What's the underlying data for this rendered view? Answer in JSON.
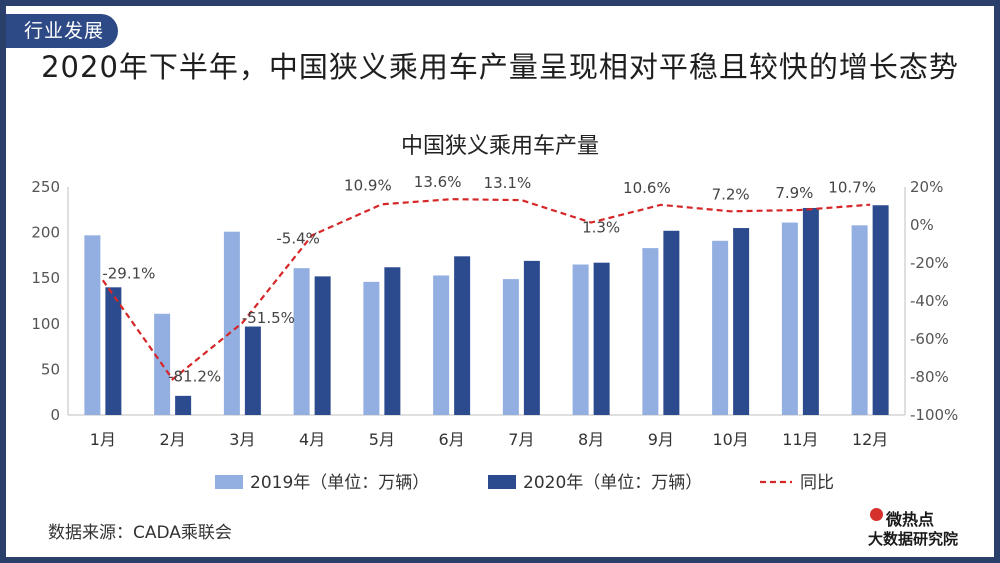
{
  "header": {
    "tag": "行业发展",
    "headline": "2020年下半年，中国狭义乘用车产量呈现相对平稳且较快的增长态势"
  },
  "chart_data": {
    "type": "bar",
    "title": "中国狭义乘用车产量",
    "categories": [
      "1月",
      "2月",
      "3月",
      "4月",
      "5月",
      "6月",
      "7月",
      "8月",
      "9月",
      "10月",
      "11月",
      "12月"
    ],
    "series": [
      {
        "name": "2019年（单位：万辆）",
        "type": "bar",
        "axis": "left",
        "values": [
          197,
          111,
          201,
          161,
          146,
          153,
          149,
          165,
          183,
          191,
          211,
          208
        ],
        "color": "#93aee0"
      },
      {
        "name": "2020年（单位：万辆）",
        "type": "bar",
        "axis": "left",
        "values": [
          140,
          21,
          97,
          152,
          162,
          174,
          169,
          167,
          202,
          205,
          227,
          230
        ],
        "color": "#2c4b8e"
      },
      {
        "name": "同比",
        "type": "line",
        "axis": "right",
        "style": "dashed",
        "values": [
          -29.1,
          -81.2,
          -51.5,
          -5.4,
          10.9,
          13.6,
          13.1,
          1.3,
          10.6,
          7.2,
          7.9,
          10.7
        ],
        "labels": [
          "-29.1%",
          "-81.2%",
          "-51.5%",
          "-5.4%",
          "10.9%",
          "13.6%",
          "13.1%",
          "1.3%",
          "10.6%",
          "7.2%",
          "7.9%",
          "10.7%"
        ],
        "color": "#d62728"
      }
    ],
    "ylim": [
      0,
      250
    ],
    "y_ticks": [
      0,
      50,
      100,
      150,
      200,
      250
    ],
    "y2lim": [
      -100,
      20
    ],
    "y2_ticks": [
      -100,
      -80,
      -60,
      -40,
      -20,
      0,
      20
    ],
    "y2_tick_labels": [
      "-100%",
      "-80%",
      "-60%",
      "-40%",
      "-20%",
      "0%",
      "20%"
    ],
    "grid": false,
    "legend_position": "bottom"
  },
  "footer": {
    "source": "数据来源：CADA乘联会",
    "logo_top": "微热点",
    "logo_bottom": "大数据研究院"
  }
}
